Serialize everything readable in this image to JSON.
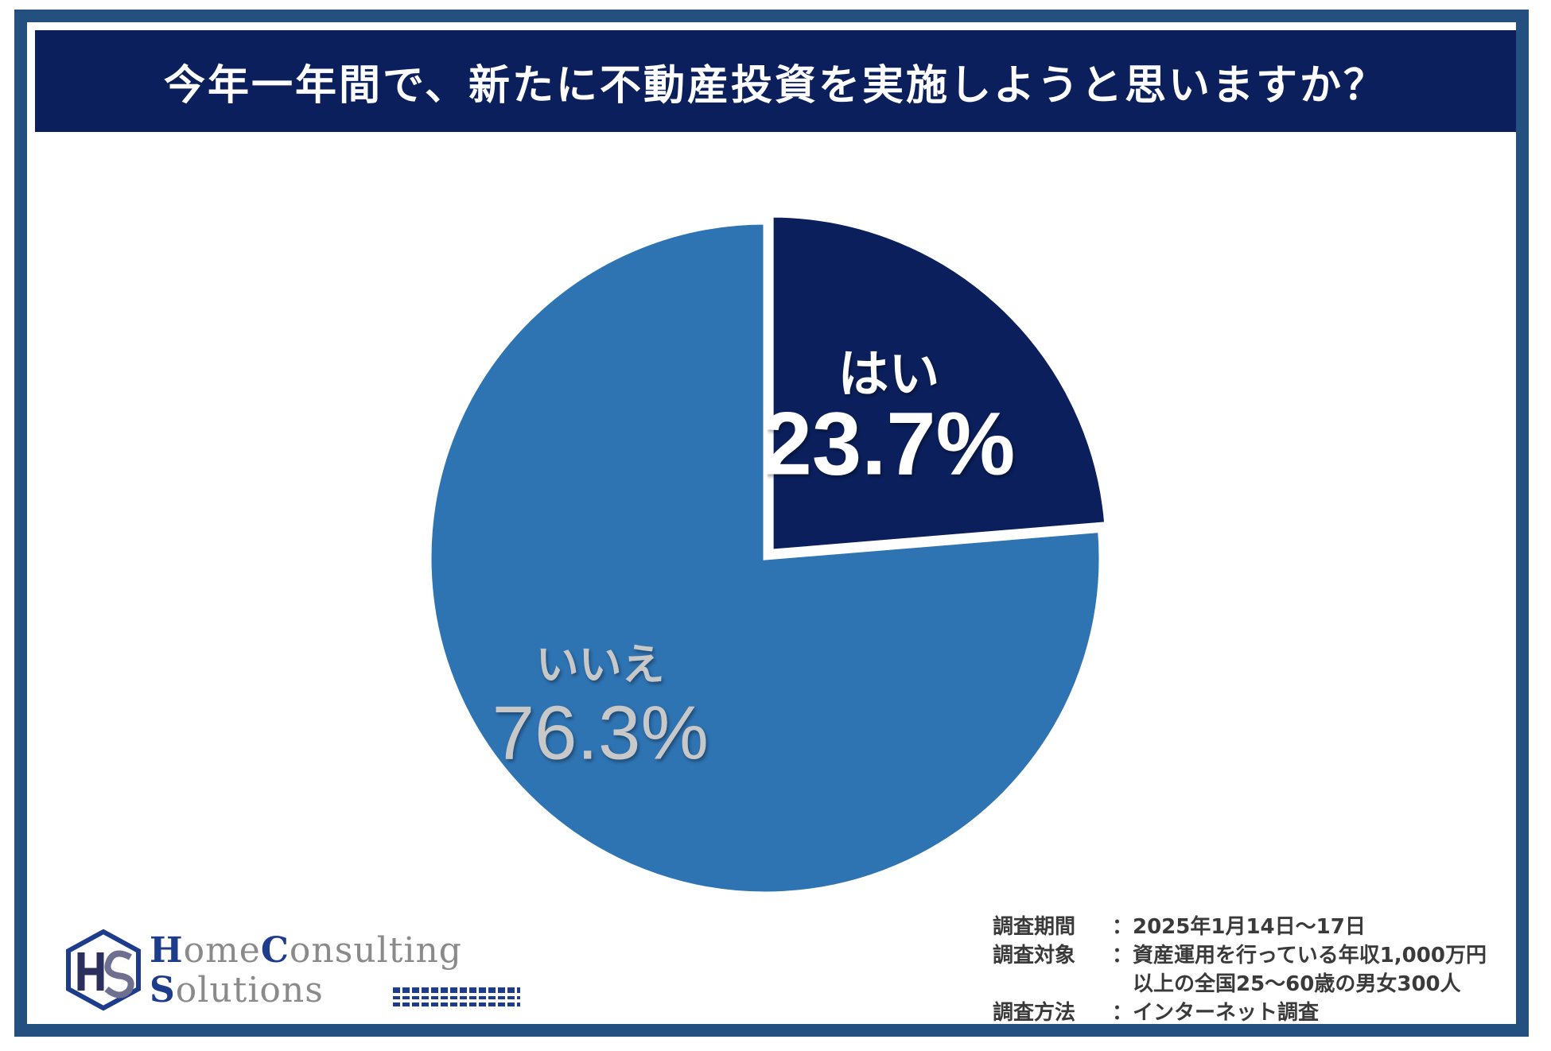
{
  "title": "今年一年間で、新たに不動産投資を実施しようと思いますか？",
  "colors": {
    "header_bg": "#0a1f5c",
    "frame": "#23507e",
    "yes": "#0a1f5c",
    "no": "#2e73b2",
    "yes_text": "#ffffff",
    "no_text": "#c8c8c8"
  },
  "chart_data": {
    "type": "pie",
    "title": "今年一年間で、新たに不動産投資を実施しようと思いますか？",
    "slices": [
      {
        "name": "はい",
        "value": 23.7,
        "label": "23.7%",
        "exploded": true
      },
      {
        "name": "いいえ",
        "value": 76.3,
        "label": "76.3%",
        "exploded": false
      }
    ]
  },
  "survey": {
    "period_label": "調査期間",
    "period_value": "2025年1月14日～17日",
    "target_label": "調査対象",
    "target_value_1": "資産運用を行っている年収1,000万円",
    "target_value_2": "以上の全国25～60歳の男女300人",
    "method_label": "調査方法",
    "method_value": "インターネット調査",
    "separator": "："
  },
  "logo": {
    "line1_initial": "H",
    "line1_rest": "ome",
    "line1_initial2": "C",
    "line1_rest2": "onsulting",
    "line2_initial": "S",
    "line2_rest": "olutions",
    "icon": "hcs-logo-mark"
  }
}
